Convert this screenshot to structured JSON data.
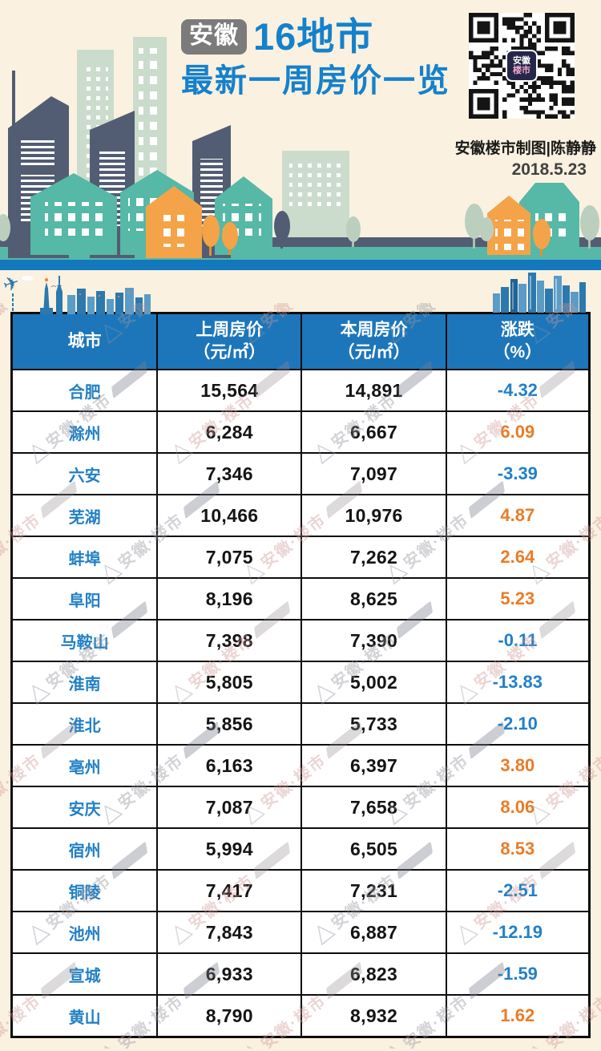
{
  "header": {
    "badge_label": "安徽",
    "title_line1_rest": "16地市",
    "title_line2": "最新一周房价一览",
    "credit": "安徽楼市制图|陈静静",
    "date": "2018.5.23",
    "qr_logo_line1": "安徽",
    "qr_logo_line2": "楼市"
  },
  "watermark": {
    "text": "安徽·楼市"
  },
  "colors": {
    "header_blue": "#1d76ba",
    "title_blue": "#1581cb",
    "up_orange": "#e97c26",
    "down_blue": "#2180c9",
    "background_cream": "#faf1e0",
    "table_border": "#0d0d0d"
  },
  "table": {
    "header": {
      "col1_line1": "城市",
      "col2_line1": "上周房价",
      "col2_line2": "（元/㎡）",
      "col3_line1": "本周房价",
      "col3_line2": "（元/㎡）",
      "col4_line1": "涨跌",
      "col4_line2": "（%）"
    },
    "rows": [
      {
        "city": "合肥",
        "last_week": "15,564",
        "this_week": "14,891",
        "change": "-4.32",
        "direction": "down"
      },
      {
        "city": "滁州",
        "last_week": "6,284",
        "this_week": "6,667",
        "change": "6.09",
        "direction": "up"
      },
      {
        "city": "六安",
        "last_week": "7,346",
        "this_week": "7,097",
        "change": "-3.39",
        "direction": "down"
      },
      {
        "city": "芜湖",
        "last_week": "10,466",
        "this_week": "10,976",
        "change": "4.87",
        "direction": "up"
      },
      {
        "city": "蚌埠",
        "last_week": "7,075",
        "this_week": "7,262",
        "change": "2.64",
        "direction": "up"
      },
      {
        "city": "阜阳",
        "last_week": "8,196",
        "this_week": "8,625",
        "change": "5.23",
        "direction": "up"
      },
      {
        "city": "马鞍山",
        "last_week": "7,398",
        "this_week": "7,390",
        "change": "-0.11",
        "direction": "down"
      },
      {
        "city": "淮南",
        "last_week": "5,805",
        "this_week": "5,002",
        "change": "-13.83",
        "direction": "down"
      },
      {
        "city": "淮北",
        "last_week": "5,856",
        "this_week": "5,733",
        "change": "-2.10",
        "direction": "down"
      },
      {
        "city": "亳州",
        "last_week": "6,163",
        "this_week": "6,397",
        "change": "3.80",
        "direction": "up"
      },
      {
        "city": "安庆",
        "last_week": "7,087",
        "this_week": "7,658",
        "change": "8.06",
        "direction": "up"
      },
      {
        "city": "宿州",
        "last_week": "5,994",
        "this_week": "6,505",
        "change": "8.53",
        "direction": "up"
      },
      {
        "city": "铜陵",
        "last_week": "7,417",
        "this_week": "7,231",
        "change": "-2.51",
        "direction": "down"
      },
      {
        "city": "池州",
        "last_week": "7,843",
        "this_week": "6,887",
        "change": "-12.19",
        "direction": "down"
      },
      {
        "city": "宣城",
        "last_week": "6,933",
        "this_week": "6,823",
        "change": "-1.59",
        "direction": "down"
      },
      {
        "city": "黄山",
        "last_week": "8,790",
        "this_week": "8,932",
        "change": "1.62",
        "direction": "up"
      }
    ]
  }
}
